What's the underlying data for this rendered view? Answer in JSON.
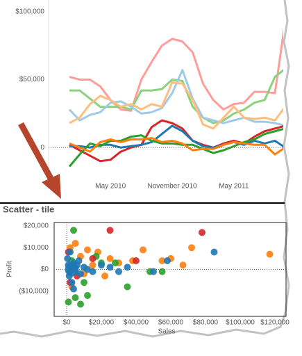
{
  "chart_data": [
    {
      "type": "line",
      "categories": [
        null,
        null,
        null,
        null,
        "May 2010",
        null,
        null,
        null,
        null,
        null,
        "November 2010",
        null,
        null,
        null,
        null,
        null,
        "May 2011",
        null,
        null,
        null,
        null,
        null
      ],
      "ylim": [
        -27000,
        106000
      ],
      "yticks": [
        {
          "value": 0,
          "label": "0"
        },
        {
          "value": 50000,
          "label": "$50,000"
        },
        {
          "value": 100000,
          "label": "$100,000"
        }
      ],
      "series": [
        {
          "color": "#ff9d9a",
          "values": [
            52000,
            50000,
            50000,
            45000,
            35000,
            28000,
            27000,
            50000,
            63000,
            75000,
            80000,
            78000,
            70000,
            47000,
            35000,
            28000,
            32000,
            33000,
            41000,
            41000,
            40000,
            93000
          ]
        },
        {
          "color": "#8cd17d",
          "values": [
            42000,
            42000,
            36000,
            30000,
            30000,
            30000,
            28000,
            42000,
            42000,
            43000,
            50000,
            49000,
            30000,
            22000,
            18000,
            20000,
            25000,
            28000,
            33000,
            35000,
            52000,
            58000
          ]
        },
        {
          "color": "#a0cbe8",
          "values": [
            28000,
            20000,
            24000,
            26000,
            33000,
            34000,
            30000,
            25000,
            26000,
            29000,
            40000,
            57000,
            36000,
            22000,
            20000,
            18000,
            20000,
            22000,
            19000,
            19000,
            18000,
            16000
          ]
        },
        {
          "color": "#ffbe7d",
          "values": [
            18000,
            22000,
            32000,
            38000,
            35000,
            30000,
            32000,
            28000,
            32000,
            30000,
            48000,
            47000,
            35000,
            17000,
            14000,
            22000,
            30000,
            22000,
            21000,
            22000,
            20000,
            30000
          ]
        },
        {
          "color": "#d62728",
          "values": [
            2000,
            -2000,
            -6000,
            -10000,
            -9000,
            -3000,
            0,
            2000,
            15000,
            20000,
            18000,
            14000,
            5000,
            2000,
            0,
            3000,
            5000,
            3000,
            8000,
            12000,
            14000,
            16000
          ]
        },
        {
          "color": "#1f77b4",
          "values": [
            1000,
            1000,
            0,
            2000,
            2000,
            0,
            1000,
            2000,
            4000,
            10000,
            16000,
            12000,
            5000,
            1000,
            0,
            2000,
            4000,
            2000,
            5000,
            3000,
            5000,
            0
          ]
        },
        {
          "color": "#2ca02c",
          "values": [
            -14000,
            -5000,
            3000,
            1000,
            5000,
            5000,
            8000,
            9000,
            5000,
            3000,
            3000,
            2000,
            2000,
            -1000,
            -4000,
            -2000,
            1000,
            4000,
            6000,
            10000,
            12000,
            14000
          ]
        },
        {
          "color": "#ff7f0e",
          "values": [
            3000,
            0,
            -3000,
            4000,
            6000,
            4000,
            6000,
            6000,
            7000,
            4000,
            5000,
            3000,
            -2000,
            -1000,
            -1000,
            2000,
            4000,
            3000,
            2000,
            2000,
            -5000,
            0
          ]
        }
      ]
    },
    {
      "type": "scatter",
      "title": "Scatter - tile",
      "xlabel": "Sales",
      "ylabel": "Profit",
      "xlim": [
        -7200,
        126400
      ],
      "ylim": [
        -21600,
        21600
      ],
      "xticks": [
        {
          "value": 0,
          "label": "$0"
        },
        {
          "value": 20000,
          "label": "$20,000"
        },
        {
          "value": 40000,
          "label": "$40,000"
        },
        {
          "value": 60000,
          "label": "$60,000"
        },
        {
          "value": 80000,
          "label": "$80,000"
        },
        {
          "value": 100000,
          "label": "$100,000"
        },
        {
          "value": 120000,
          "label": "$120,000"
        }
      ],
      "yticks": [
        {
          "value": -10000,
          "label": "($10,000)"
        },
        {
          "value": 0,
          "label": "$0"
        },
        {
          "value": 10000,
          "label": "$10,000"
        },
        {
          "value": 20000,
          "label": "$20,000"
        }
      ],
      "series": [
        {
          "color": "#ff7f0e",
          "x": [
            2000,
            5000,
            8000,
            12000,
            18000,
            22000,
            25000,
            30000,
            38000,
            44000,
            55000,
            60000,
            67000,
            72000,
            10000,
            3000,
            15000,
            117000
          ],
          "y": [
            10000,
            12000,
            6000,
            9000,
            8000,
            -3000,
            5000,
            3000,
            4000,
            9000,
            4000,
            5000,
            2000,
            10000,
            -2000,
            -8000,
            2000,
            7000
          ]
        },
        {
          "color": "#2ca02c",
          "x": [
            4000,
            1000,
            5000,
            8000,
            12000,
            20000,
            28000,
            35000,
            48000,
            55000,
            10000,
            17000,
            3000
          ],
          "y": [
            18000,
            -15000,
            -13000,
            -16000,
            -12000,
            3000,
            3000,
            -8000,
            -1000,
            -1000,
            -6000,
            6000,
            4000
          ]
        },
        {
          "color": "#d62728",
          "x": [
            1000,
            25000,
            78000,
            6000,
            40000,
            15000,
            2000
          ],
          "y": [
            8000,
            18000,
            17000,
            -3000,
            4000,
            5000,
            -6000
          ]
        },
        {
          "color": "#1f77b4",
          "x": [
            1000,
            2000,
            3000,
            4000,
            1500,
            5000,
            6000,
            8000,
            10000,
            12000,
            500,
            3000,
            7000,
            15000,
            20000,
            25000,
            30000,
            35000,
            50000,
            58000,
            85000,
            2000,
            4000
          ],
          "y": [
            2000,
            -1000,
            1000,
            3000,
            -3000,
            0,
            2000,
            -2000,
            1000,
            0,
            5000,
            -6000,
            4000,
            -1000,
            2000,
            1000,
            -1000,
            1000,
            -1000,
            4000,
            8000,
            8000,
            -9000
          ]
        }
      ]
    }
  ]
}
